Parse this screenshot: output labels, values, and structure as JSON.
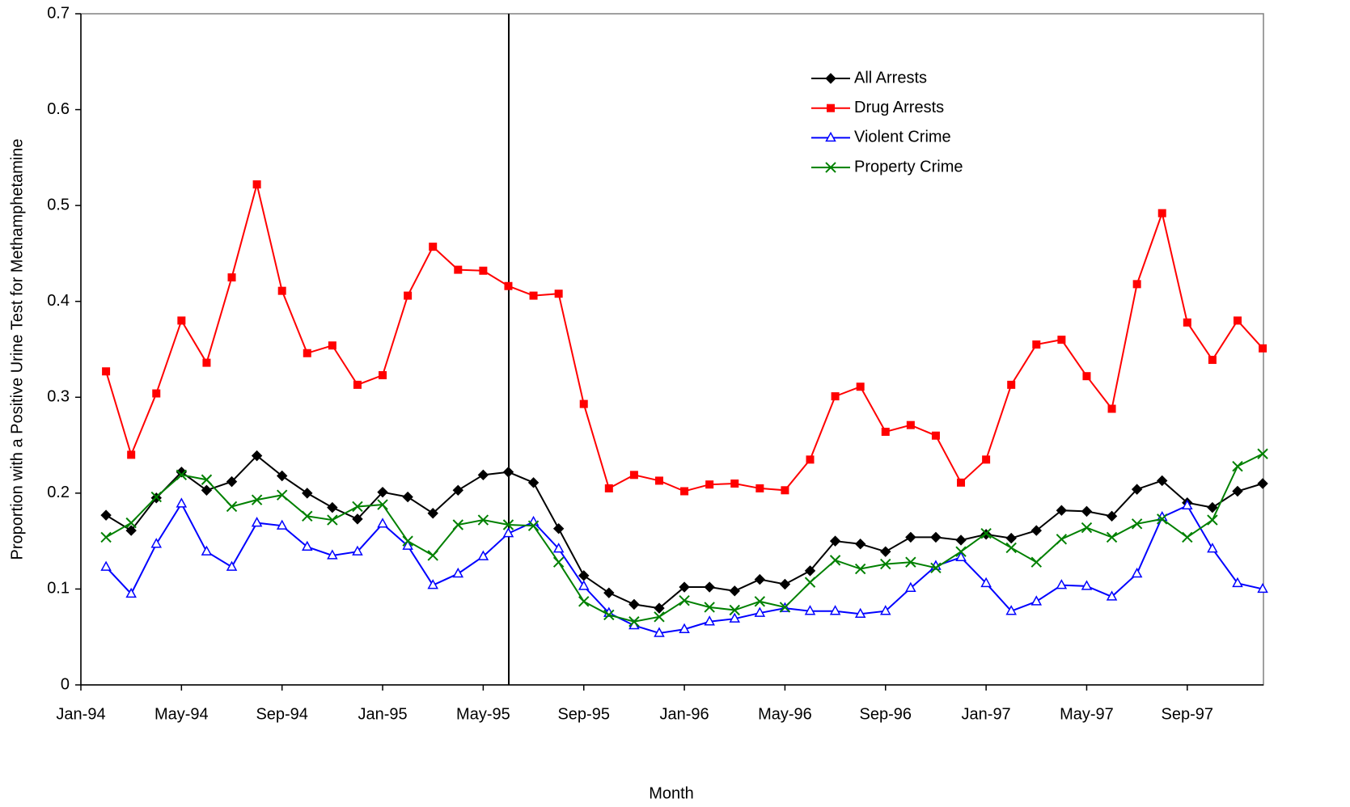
{
  "chart_data": {
    "type": "line",
    "x_label": "Month",
    "y_label": "Proportion with a Positive Urine Test for Methamphetamine",
    "categories": [
      "Jan-94",
      null,
      null,
      null,
      "May-94",
      null,
      null,
      null,
      "Sep-94",
      null,
      null,
      null,
      "Jan-95",
      null,
      null,
      null,
      "May-95",
      null,
      null,
      null,
      "Sep-95",
      null,
      null,
      null,
      "Jan-96",
      null,
      null,
      null,
      "May-96",
      null,
      null,
      null,
      "Sep-96",
      null,
      null,
      null,
      "Jan-97",
      null,
      null,
      null,
      "May-97",
      null,
      null,
      null,
      "Sep-97",
      null,
      null,
      null
    ],
    "series": [
      {
        "name": "All Arrests",
        "color": "#000000",
        "marker": "diamond",
        "values": [
          null,
          0.177,
          0.161,
          0.195,
          0.222,
          0.203,
          0.212,
          0.239,
          0.218,
          0.2,
          0.185,
          0.173,
          0.201,
          0.196,
          0.179,
          0.203,
          0.219,
          0.222,
          0.211,
          0.163,
          0.114,
          0.096,
          0.084,
          0.08,
          0.102,
          0.102,
          0.098,
          0.11,
          0.105,
          0.119,
          0.15,
          0.147,
          0.139,
          0.154,
          0.154,
          0.151,
          0.157,
          0.153,
          0.161,
          0.182,
          0.181,
          0.176,
          0.204,
          0.213,
          0.19,
          0.185,
          0.202,
          0.21
        ]
      },
      {
        "name": "Drug Arrests",
        "color": "#ff0000",
        "marker": "square",
        "values": [
          null,
          0.327,
          0.24,
          0.304,
          0.38,
          0.336,
          0.425,
          0.522,
          0.411,
          0.346,
          0.354,
          0.313,
          0.323,
          0.406,
          0.457,
          0.433,
          0.432,
          0.416,
          0.406,
          0.408,
          0.293,
          0.205,
          0.219,
          0.213,
          0.202,
          0.209,
          0.21,
          0.205,
          0.203,
          0.235,
          0.301,
          0.311,
          0.264,
          0.271,
          0.26,
          0.211,
          0.235,
          0.313,
          0.355,
          0.36,
          0.322,
          0.288,
          0.418,
          0.492,
          0.378,
          0.339,
          0.38,
          0.351
        ]
      },
      {
        "name": "Violent Crime",
        "color": "#0000ff",
        "marker": "triangle-open",
        "values": [
          null,
          0.123,
          0.095,
          0.147,
          0.189,
          0.139,
          0.123,
          0.169,
          0.166,
          0.144,
          0.135,
          0.139,
          0.168,
          0.145,
          0.104,
          0.116,
          0.134,
          0.158,
          0.17,
          0.142,
          0.103,
          0.075,
          0.062,
          0.054,
          0.058,
          0.066,
          0.069,
          0.075,
          0.08,
          0.077,
          0.077,
          0.074,
          0.077,
          0.101,
          0.124,
          0.133,
          0.106,
          0.077,
          0.087,
          0.104,
          0.103,
          0.092,
          0.116,
          0.175,
          0.187,
          0.142,
          0.106,
          0.1
        ]
      },
      {
        "name": "Property Crime",
        "color": "#008000",
        "marker": "x",
        "values": [
          null,
          0.154,
          0.169,
          0.196,
          0.219,
          0.214,
          0.186,
          0.193,
          0.198,
          0.176,
          0.172,
          0.186,
          0.188,
          0.15,
          0.135,
          0.167,
          0.172,
          0.167,
          0.166,
          0.128,
          0.087,
          0.073,
          0.066,
          0.071,
          0.088,
          0.081,
          0.078,
          0.087,
          0.081,
          0.107,
          0.13,
          0.121,
          0.126,
          0.128,
          0.122,
          0.139,
          0.158,
          0.143,
          0.128,
          0.152,
          0.164,
          0.154,
          0.168,
          0.173,
          0.154,
          0.172,
          0.228,
          0.241
        ]
      }
    ],
    "ylim": [
      0,
      0.7
    ],
    "yticks": [
      0,
      0.1,
      0.2,
      0.3,
      0.4,
      0.5,
      0.6,
      0.7
    ],
    "grid": false,
    "legend": "upper right"
  }
}
